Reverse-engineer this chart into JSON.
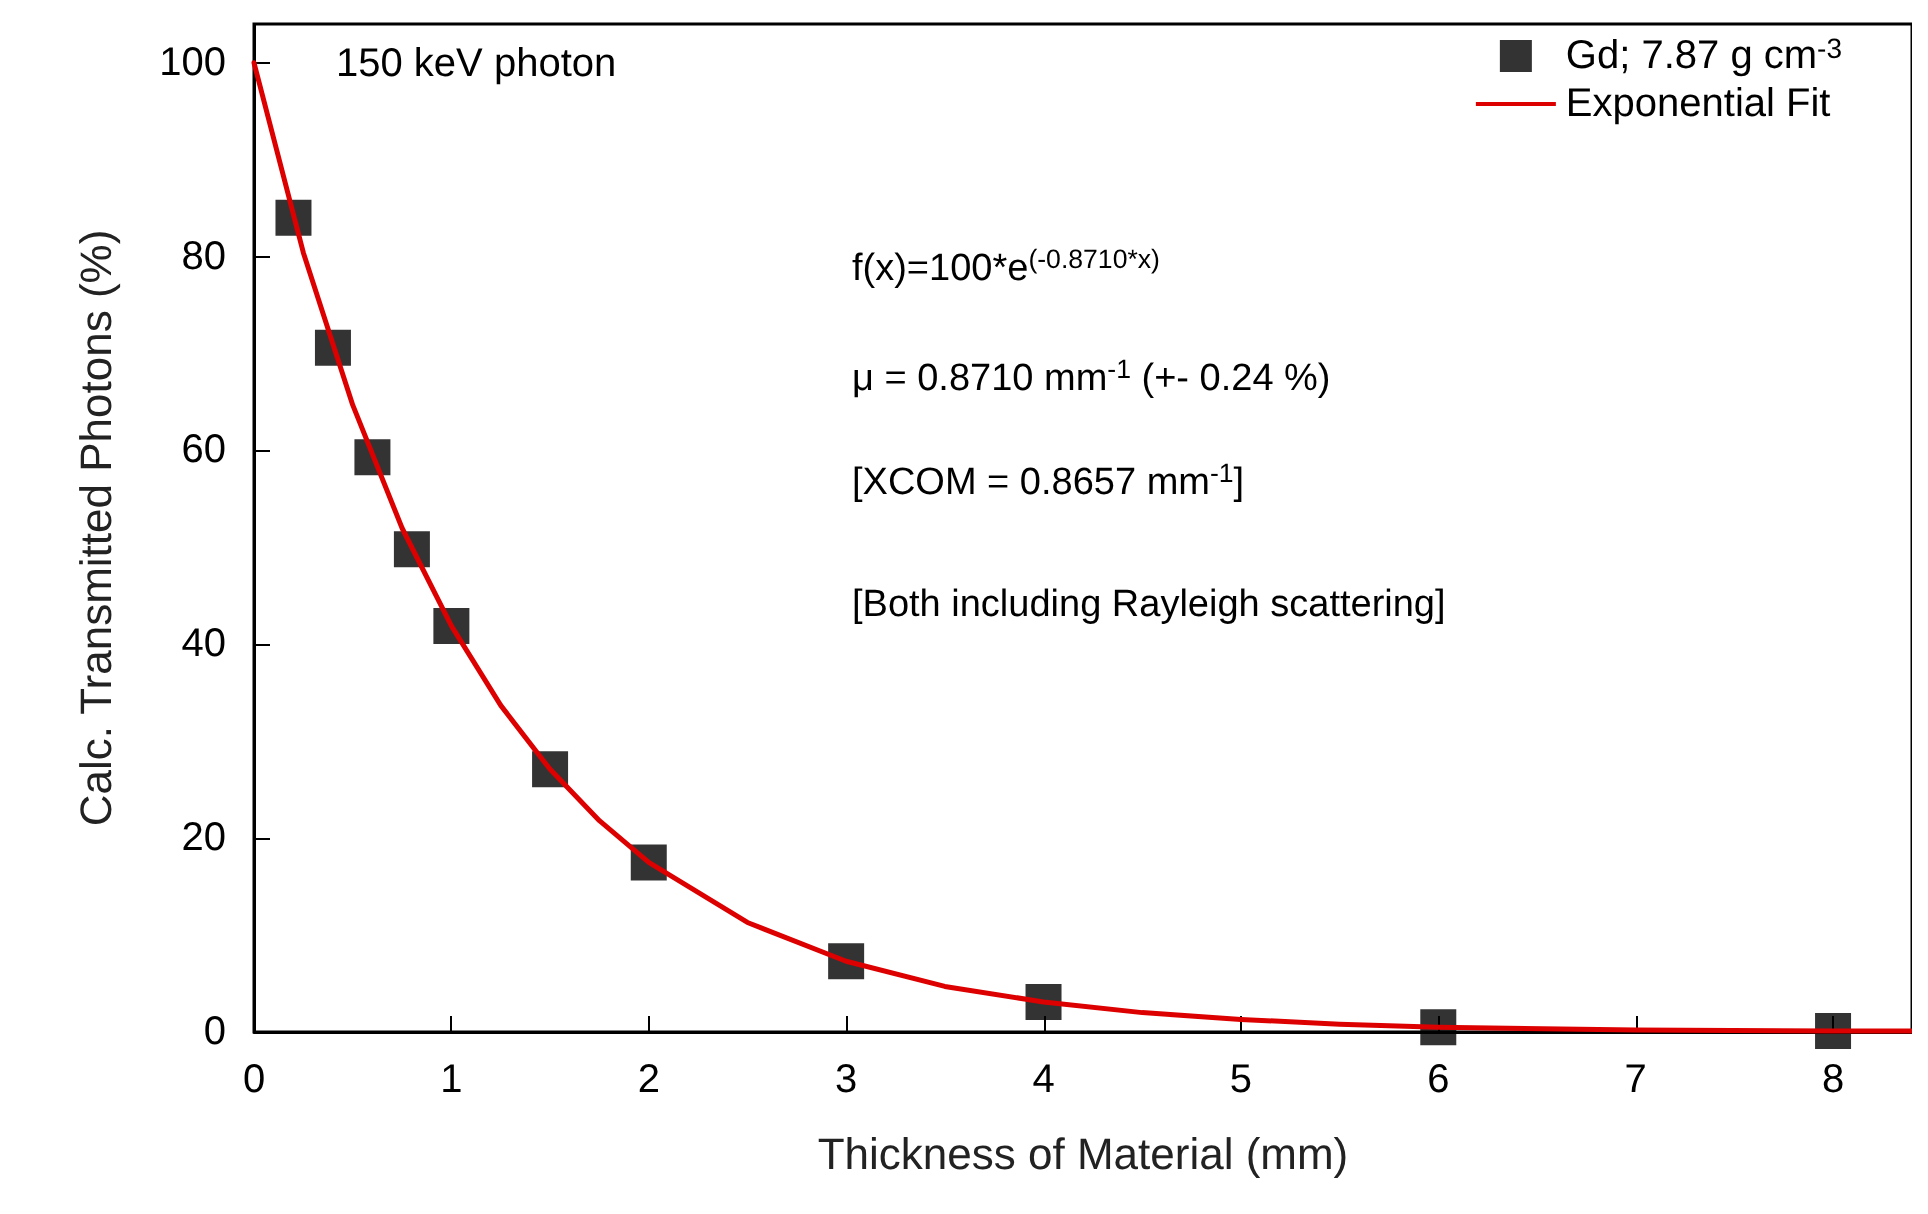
{
  "chart_data": {
    "type": "scatter",
    "xlabel": "Thickness of Material (mm)",
    "ylabel": "Calc. Transmitted Photons (%)",
    "xlim": [
      0,
      8.4
    ],
    "xticks": [
      0,
      1,
      2,
      3,
      4,
      5,
      6,
      7,
      8
    ],
    "ylim": [
      0,
      104
    ],
    "yticks": [
      0,
      20,
      40,
      60,
      80,
      100
    ],
    "grid": false,
    "legend": "top right",
    "marker": "square",
    "annotations": [
      "150 keV photon",
      "f(x)=100*e$^{(-0.8710*x)}$",
      "μ = 0.8710 mm$^{-1}$ (+- 0.24 %)",
      "[XCOM = 0.8657 mm$^{-1}$]",
      "[Both including Rayleigh scattering]"
    ],
    "series": [
      {
        "name": "Gd; 7.87 g cm$^{-3}$",
        "color": "#000000",
        "x": [
          0.2,
          0.4,
          0.6,
          0.8,
          1,
          1.5,
          2,
          3,
          4,
          6,
          8
        ],
        "values": [
          84.0,
          70.6,
          59.3,
          49.8,
          41.9,
          27.1,
          17.5,
          7.3,
          3.1,
          0.5,
          0.1
        ]
      },
      {
        "name": "Exponential Fit",
        "type": "line",
        "color": "#dd0000",
        "line_style": "solid",
        "marker": "none",
        "x": [
          0,
          0.25,
          0.5,
          0.75,
          1,
          1.25,
          1.5,
          1.75,
          2,
          2.5,
          3,
          3.5,
          4,
          4.5,
          5,
          5.5,
          6,
          7,
          8,
          8.4
        ],
        "values": [
          100,
          80.4,
          64.7,
          52.0,
          41.9,
          33.7,
          27.1,
          21.8,
          17.5,
          11.3,
          7.3,
          4.7,
          3.1,
          2.0,
          1.3,
          0.8,
          0.5,
          0.2,
          0.1,
          0.1
        ]
      }
    ]
  }
}
